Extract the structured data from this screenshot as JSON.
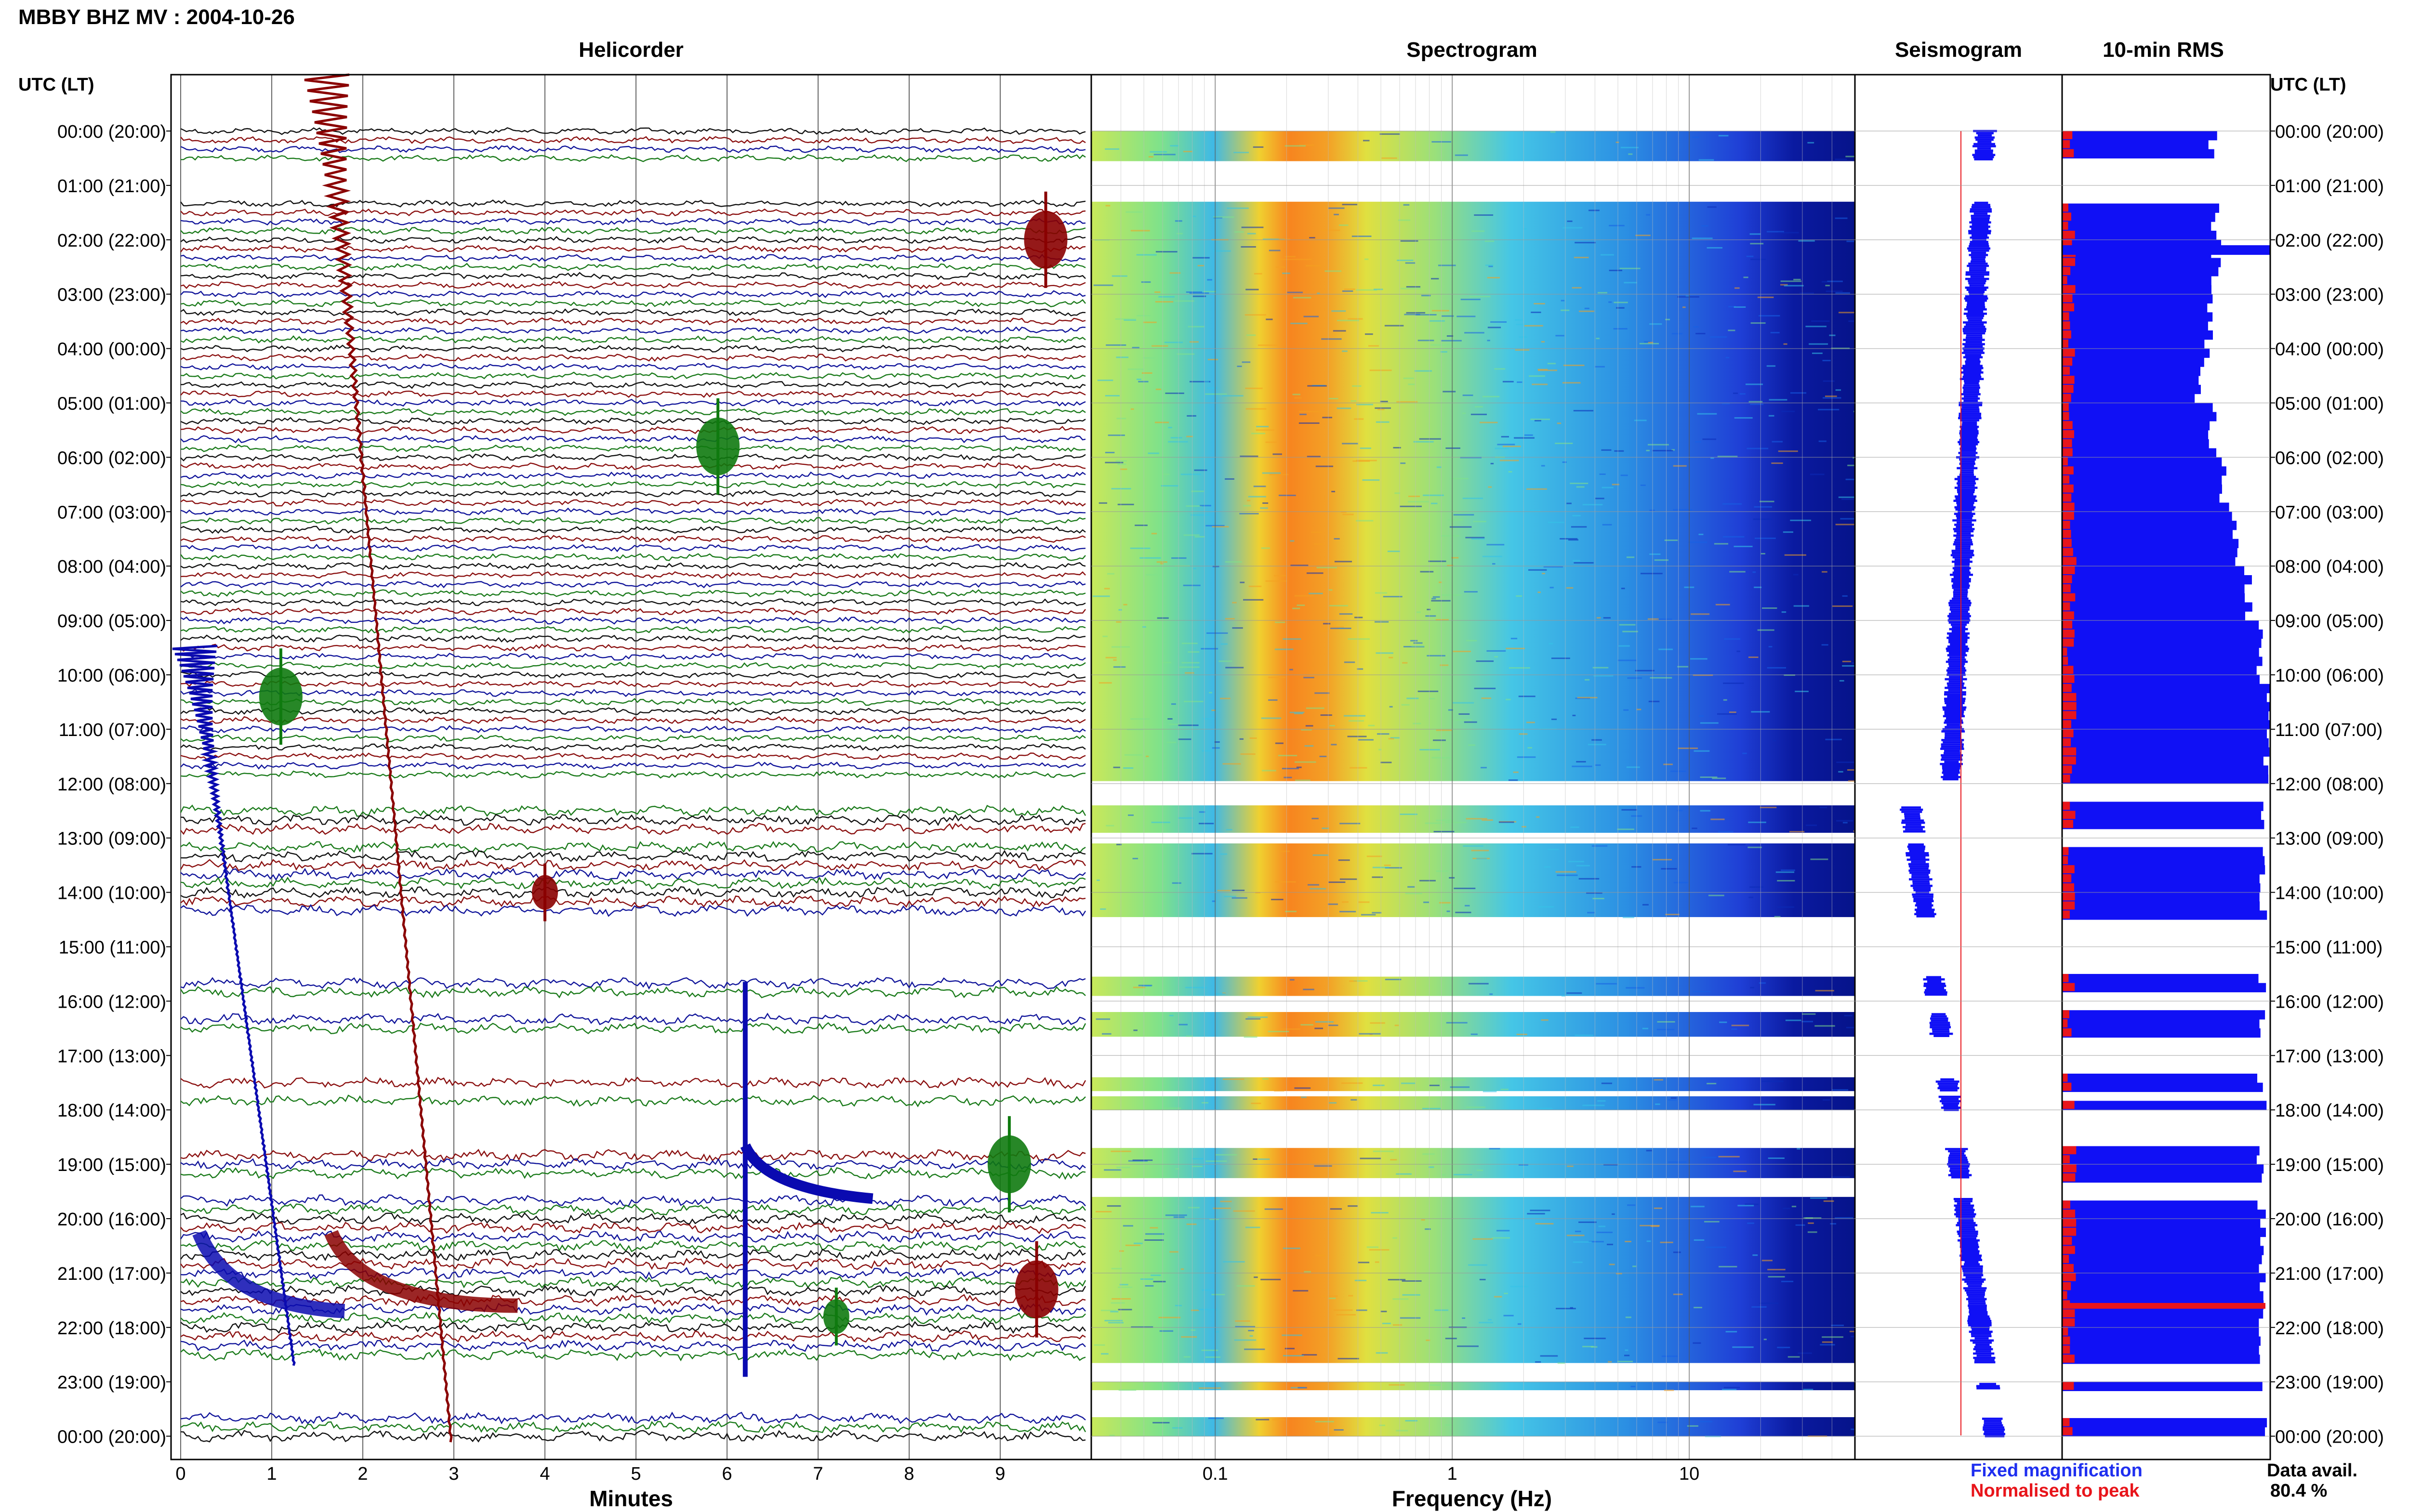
{
  "header": {
    "station_title": "MBBY BHZ MV : 2004-10-26"
  },
  "panels": {
    "helicorder": "Helicorder",
    "spectrogram": "Spectrogram",
    "seismogram": "Seismogram",
    "rms": "10-min RMS"
  },
  "time_axis": {
    "label_left": "UTC (LT)",
    "label_right": "UTC (LT)",
    "ticks": [
      "00:00 (20:00)",
      "01:00 (21:00)",
      "02:00 (22:00)",
      "03:00 (23:00)",
      "04:00 (00:00)",
      "05:00 (01:00)",
      "06:00 (02:00)",
      "07:00 (03:00)",
      "08:00 (04:00)",
      "09:00 (05:00)",
      "10:00 (06:00)",
      "11:00 (07:00)",
      "12:00 (08:00)",
      "13:00 (09:00)",
      "14:00 (10:00)",
      "15:00 (11:00)",
      "16:00 (12:00)",
      "17:00 (13:00)",
      "18:00 (14:00)",
      "19:00 (15:00)",
      "20:00 (16:00)",
      "21:00 (17:00)",
      "22:00 (18:00)",
      "23:00 (19:00)",
      "00:00 (20:00)"
    ]
  },
  "legend": {
    "fixed": "Fixed magnification",
    "normalised": "Normalised to peak",
    "fixed_color": "#1f2ff0",
    "normalised_color": "#e8151b",
    "avail_label": "Data avail.",
    "avail_value": "80.4 %"
  },
  "colors": {
    "trace_black": "#111111",
    "trace_blue": "#10149a",
    "trace_red": "#8a0f0f",
    "trace_green": "#1a7a1a",
    "rms_blue": "#1010f5",
    "rms_red": "#e8151b"
  },
  "chart_data": [
    {
      "type": "line",
      "name": "helicorder",
      "title": "Helicorder",
      "xlabel": "Minutes",
      "x_ticks": [
        "0",
        "1",
        "2",
        "3",
        "4",
        "5",
        "6",
        "7",
        "8",
        "9"
      ],
      "xlim": [
        0,
        10
      ],
      "events": [
        {
          "minute": 1.6,
          "hour": 0.0,
          "color": "red",
          "amplitude": "very large"
        },
        {
          "minute": 0.15,
          "hour": 10.0,
          "color": "blue",
          "amplitude": "very large"
        },
        {
          "minute": 6.2,
          "hour": 16.0,
          "color": "blue",
          "amplitude": "large"
        },
        {
          "minute": 9.5,
          "hour": 2.0,
          "color": "red",
          "amplitude": "moderate"
        },
        {
          "minute": 5.9,
          "hour": 5.8,
          "color": "green",
          "amplitude": "moderate"
        },
        {
          "minute": 1.1,
          "hour": 10.4,
          "color": "green",
          "amplitude": "moderate"
        },
        {
          "minute": 9.1,
          "hour": 19.0,
          "color": "green",
          "amplitude": "moderate"
        },
        {
          "minute": 9.4,
          "hour": 21.3,
          "color": "red",
          "amplitude": "moderate"
        },
        {
          "minute": 7.2,
          "hour": 21.8,
          "color": "green",
          "amplitude": "small"
        },
        {
          "minute": 4.0,
          "hour": 14.0,
          "color": "red",
          "amplitude": "small"
        }
      ]
    },
    {
      "type": "heatmap",
      "name": "spectrogram",
      "title": "Spectrogram",
      "xlabel": "Frequency (Hz)",
      "x_scale": "log",
      "x_ticks": [
        "0.1",
        "1",
        "10"
      ],
      "xlim": [
        0.03,
        50
      ],
      "colormap": "jet",
      "peak_band_hz": [
        0.13,
        0.35
      ]
    },
    {
      "type": "area",
      "name": "seismogram",
      "title": "Seismogram"
    },
    {
      "type": "bar",
      "name": "rms",
      "title": "10-min RMS",
      "orientation": "horizontal"
    }
  ],
  "data_gaps_hours": [
    [
      0.55,
      1.3
    ],
    [
      11.95,
      12.4
    ],
    [
      12.9,
      13.1
    ],
    [
      14.45,
      15.55
    ],
    [
      15.9,
      16.2
    ],
    [
      16.65,
      17.4
    ],
    [
      17.65,
      17.75
    ],
    [
      18.0,
      18.7
    ],
    [
      19.25,
      19.6
    ],
    [
      22.65,
      23.0
    ],
    [
      23.15,
      23.65
    ]
  ],
  "rms_fixed_by_hour": [
    0.72,
    0.73,
    0.74,
    0.7,
    0.66,
    0.72,
    0.78,
    0.83,
    0.9,
    0.95,
    1.0,
    0.98,
    0.97,
    0.96,
    0.96,
    0.96,
    0.96,
    0.96,
    0.96,
    0.96,
    0.96,
    0.96,
    0.96,
    0.96,
    0.96
  ]
}
